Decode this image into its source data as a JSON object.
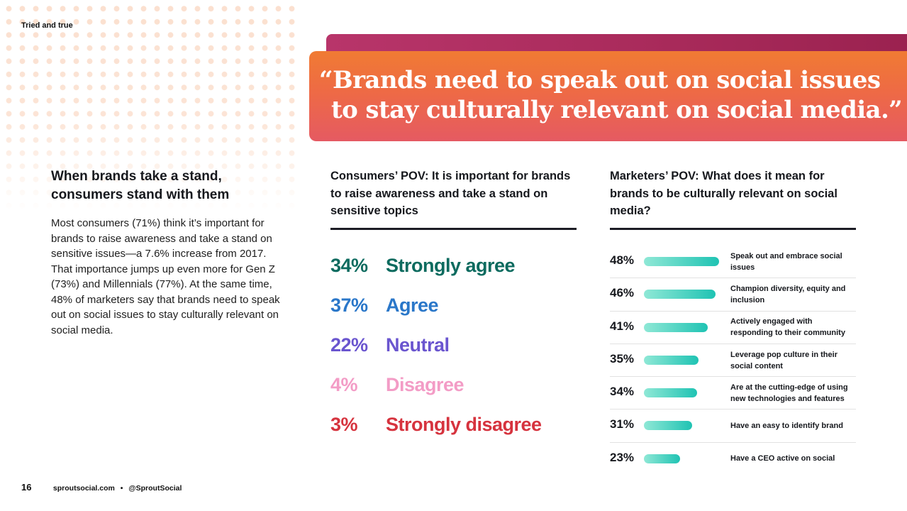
{
  "header": {
    "section_tag": "Tried and true"
  },
  "banner": {
    "quote_line1": "“Brands need to speak out on social issues",
    "quote_line2": "to stay culturally relevant on social media.”"
  },
  "intro": {
    "heading": "When brands take a stand, consumers stand with them",
    "body": "Most consumers (71%) think it’s important for brands to raise awareness and take a stand on sensitive issues—a 7.6% increase from 2017. That importance jumps up even more for Gen Z (73%) and Millennials (77%). At the same time, 48% of marketers say that brands need to speak out on social issues to stay culturally relevant on social media."
  },
  "consumers": {
    "heading": "Consumers’ POV: It is important for brands to raise awareness and take a stand on sensitive topics",
    "rows": [
      {
        "pct": "34%",
        "label": "Strongly agree",
        "value": 34,
        "color": "#0d6b5f"
      },
      {
        "pct": "37%",
        "label": "Agree",
        "value": 37,
        "color": "#2a77c9"
      },
      {
        "pct": "22%",
        "label": "Neutral",
        "value": 22,
        "color": "#6a55cf"
      },
      {
        "pct": "4%",
        "label": "Disagree",
        "value": 4,
        "color": "#f39cc6"
      },
      {
        "pct": "3%",
        "label": "Strongly disagree",
        "value": 3,
        "color": "#d6333e"
      }
    ]
  },
  "chart_data": {
    "type": "bar",
    "title": "Marketers’ POV: What does it mean for brands to be culturally relevant on social media?",
    "xlabel": "",
    "ylabel": "",
    "ylim": [
      0,
      50
    ],
    "bar_color": "#1fc3b3",
    "categories": [
      "Speak out and embrace social issues",
      "Champion diversity, equity and inclusion",
      "Actively engaged with responding to their community",
      "Leverage pop culture in their social content",
      "Are at the cutting-edge of using new technologies and features",
      "Have an easy to identify brand",
      "Have a CEO active on social"
    ],
    "labels": [
      "48%",
      "46%",
      "41%",
      "35%",
      "34%",
      "31%",
      "23%"
    ],
    "values": [
      48,
      46,
      41,
      35,
      34,
      31,
      23
    ]
  },
  "footer": {
    "page_number": "16",
    "site": "sproutsocial.com",
    "separator": "•",
    "handle": "@SproutSocial"
  }
}
